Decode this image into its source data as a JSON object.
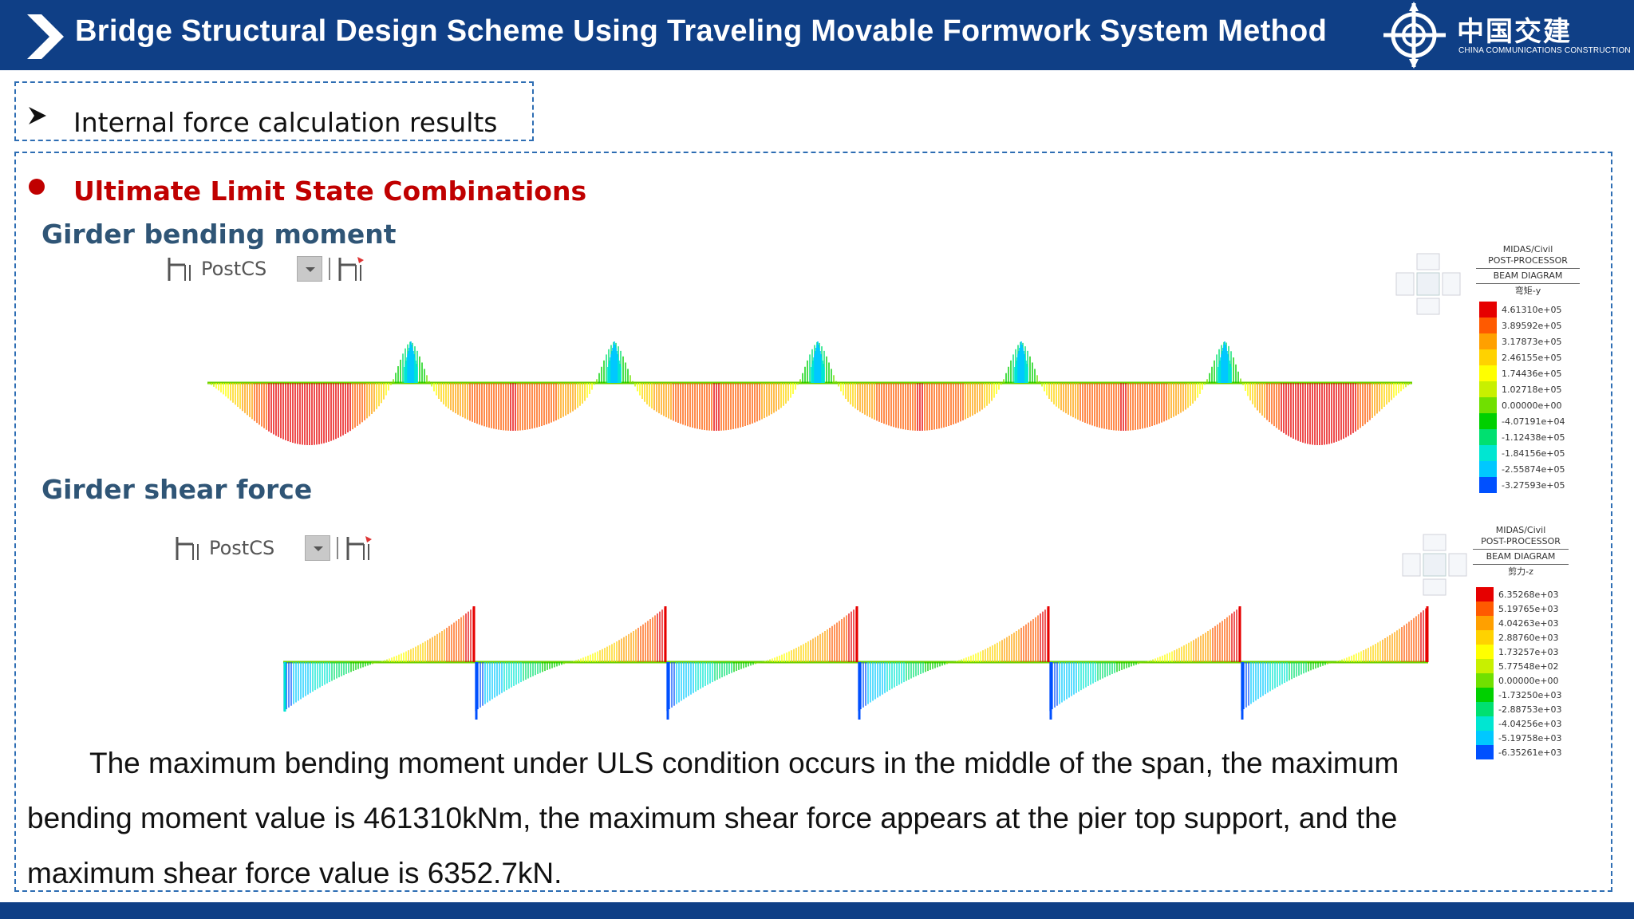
{
  "header": {
    "title": "Bridge Structural Design Scheme Using Traveling Movable Formwork System Method",
    "logo_cn": "中国交建",
    "logo_en": "CHINA COMMUNICATIONS CONSTRUCTION",
    "bg_color": "#0f3f86"
  },
  "section": {
    "marker_icon": "arrow-bullet-icon",
    "label": "Internal force calculation results"
  },
  "main": {
    "heading": "Ultimate Limit State Combinations",
    "moment": {
      "title": "Girder bending moment",
      "toolbar_label": "PostCS",
      "legend": {
        "software": "MIDAS/Civil",
        "processor": "POST-PROCESSOR",
        "diagram": "BEAM DIAGRAM",
        "component": "弯矩-y",
        "values": [
          "4.61310e+05",
          "3.89592e+05",
          "3.17873e+05",
          "2.46155e+05",
          "1.74436e+05",
          "1.02718e+05",
          "0.00000e+00",
          "-4.07191e+04",
          "-1.12438e+05",
          "-1.84156e+05",
          "-2.55874e+05",
          "-3.27593e+05"
        ]
      }
    },
    "shear": {
      "title": "Girder shear force",
      "toolbar_label": "PostCS",
      "legend": {
        "software": "MIDAS/Civil",
        "processor": "POST-PROCESSOR",
        "diagram": "BEAM DIAGRAM",
        "component": "剪力-z",
        "values": [
          "6.35268e+03",
          "5.19765e+03",
          "4.04263e+03",
          "2.88760e+03",
          "1.73257e+03",
          "5.77548e+02",
          "0.00000e+00",
          "-1.73250e+03",
          "-2.88753e+03",
          "-4.04256e+03",
          "-5.19758e+03",
          "-6.35261e+03"
        ]
      }
    },
    "legend_colors": [
      "#e60000",
      "#ff5a00",
      "#ffa000",
      "#ffd200",
      "#ffff00",
      "#c8f000",
      "#70e000",
      "#00d000",
      "#00e070",
      "#00e6d2",
      "#00c8ff",
      "#0050ff"
    ],
    "summary": "The maximum bending moment under ULS condition occurs in the middle of the span, the maximum bending moment value is 461310kNm, the maximum shear force appears at the pier top support, and the maximum shear force value is 6352.7kN."
  }
}
